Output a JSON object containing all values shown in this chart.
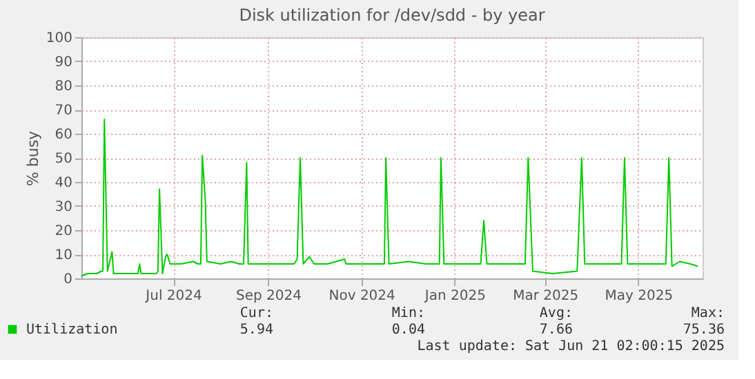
{
  "chart_data": {
    "type": "line",
    "title": "Disk utilization for /dev/sdd - by year",
    "ylabel": "% busy",
    "x": [
      "2024-05-02",
      "2024-05-06",
      "2024-05-12",
      "2024-05-15",
      "2024-05-16",
      "2024-05-17",
      "2024-05-19",
      "2024-05-22",
      "2024-05-23",
      "2024-05-31",
      "2024-06-08",
      "2024-06-09",
      "2024-06-10",
      "2024-06-20",
      "2024-06-21",
      "2024-06-22",
      "2024-06-24",
      "2024-06-26",
      "2024-06-27",
      "2024-06-29",
      "2024-07-06",
      "2024-07-14",
      "2024-07-17",
      "2024-07-19",
      "2024-07-20",
      "2024-07-22",
      "2024-07-23",
      "2024-08-01",
      "2024-08-08",
      "2024-08-13",
      "2024-08-16",
      "2024-08-18",
      "2024-08-19",
      "2024-08-29",
      "2024-09-09",
      "2024-09-18",
      "2024-09-20",
      "2024-09-22",
      "2024-09-24",
      "2024-09-28",
      "2024-10-01",
      "2024-10-10",
      "2024-10-21",
      "2024-10-22",
      "2024-11-05",
      "2024-11-16",
      "2024-11-17",
      "2024-11-19",
      "2024-12-02",
      "2024-12-13",
      "2024-12-22",
      "2024-12-23",
      "2024-12-25",
      "2025-01-06",
      "2025-01-18",
      "2025-01-20",
      "2025-01-22",
      "2025-02-03",
      "2025-02-16",
      "2025-02-18",
      "2025-02-21",
      "2025-03-06",
      "2025-03-22",
      "2025-03-25",
      "2025-03-27",
      "2025-04-11",
      "2025-04-20",
      "2025-04-22",
      "2025-04-24",
      "2025-05-08",
      "2025-05-19",
      "2025-05-21",
      "2025-05-23",
      "2025-05-28",
      "2025-06-04",
      "2025-06-09"
    ],
    "series": [
      {
        "name": "Utilization",
        "color": "#00cc00",
        "values": [
          1,
          2,
          2,
          3,
          3,
          66,
          3,
          11,
          2,
          2,
          2,
          6,
          2,
          2,
          3,
          37,
          2,
          9,
          10,
          6,
          6,
          7,
          6,
          6,
          51,
          32,
          7,
          6,
          7,
          6,
          6,
          48,
          6,
          6,
          6,
          6,
          8,
          50,
          6,
          9,
          6,
          6,
          8,
          6,
          6,
          6,
          50,
          6,
          7,
          6,
          6,
          50,
          6,
          6,
          6,
          24,
          6,
          6,
          6,
          50,
          3,
          2,
          3,
          50,
          6,
          6,
          6,
          50,
          6,
          6,
          6,
          50,
          5,
          7,
          6,
          5
        ]
      }
    ],
    "xlim": [
      "2024-05-02",
      "2025-06-12"
    ],
    "xticks": [
      {
        "value": "2024-07-01",
        "label": "Jul 2024"
      },
      {
        "value": "2024-09-01",
        "label": "Sep 2024"
      },
      {
        "value": "2024-11-01",
        "label": "Nov 2024"
      },
      {
        "value": "2025-01-01",
        "label": "Jan 2025"
      },
      {
        "value": "2025-03-01",
        "label": "Mar 2025"
      },
      {
        "value": "2025-05-01",
        "label": "May 2025"
      }
    ],
    "ylim": [
      0,
      100
    ],
    "yticks": [
      0,
      10,
      20,
      30,
      40,
      50,
      60,
      70,
      80,
      90,
      100
    ],
    "grid": true,
    "legend": "bottom left",
    "annotations": [
      "Cur:",
      "5.94",
      "Min:",
      "0.04",
      "Avg:",
      "7.66",
      "Max:",
      "75.36",
      "Last update: Sat Jun 21 02:00:15 2025"
    ]
  }
}
